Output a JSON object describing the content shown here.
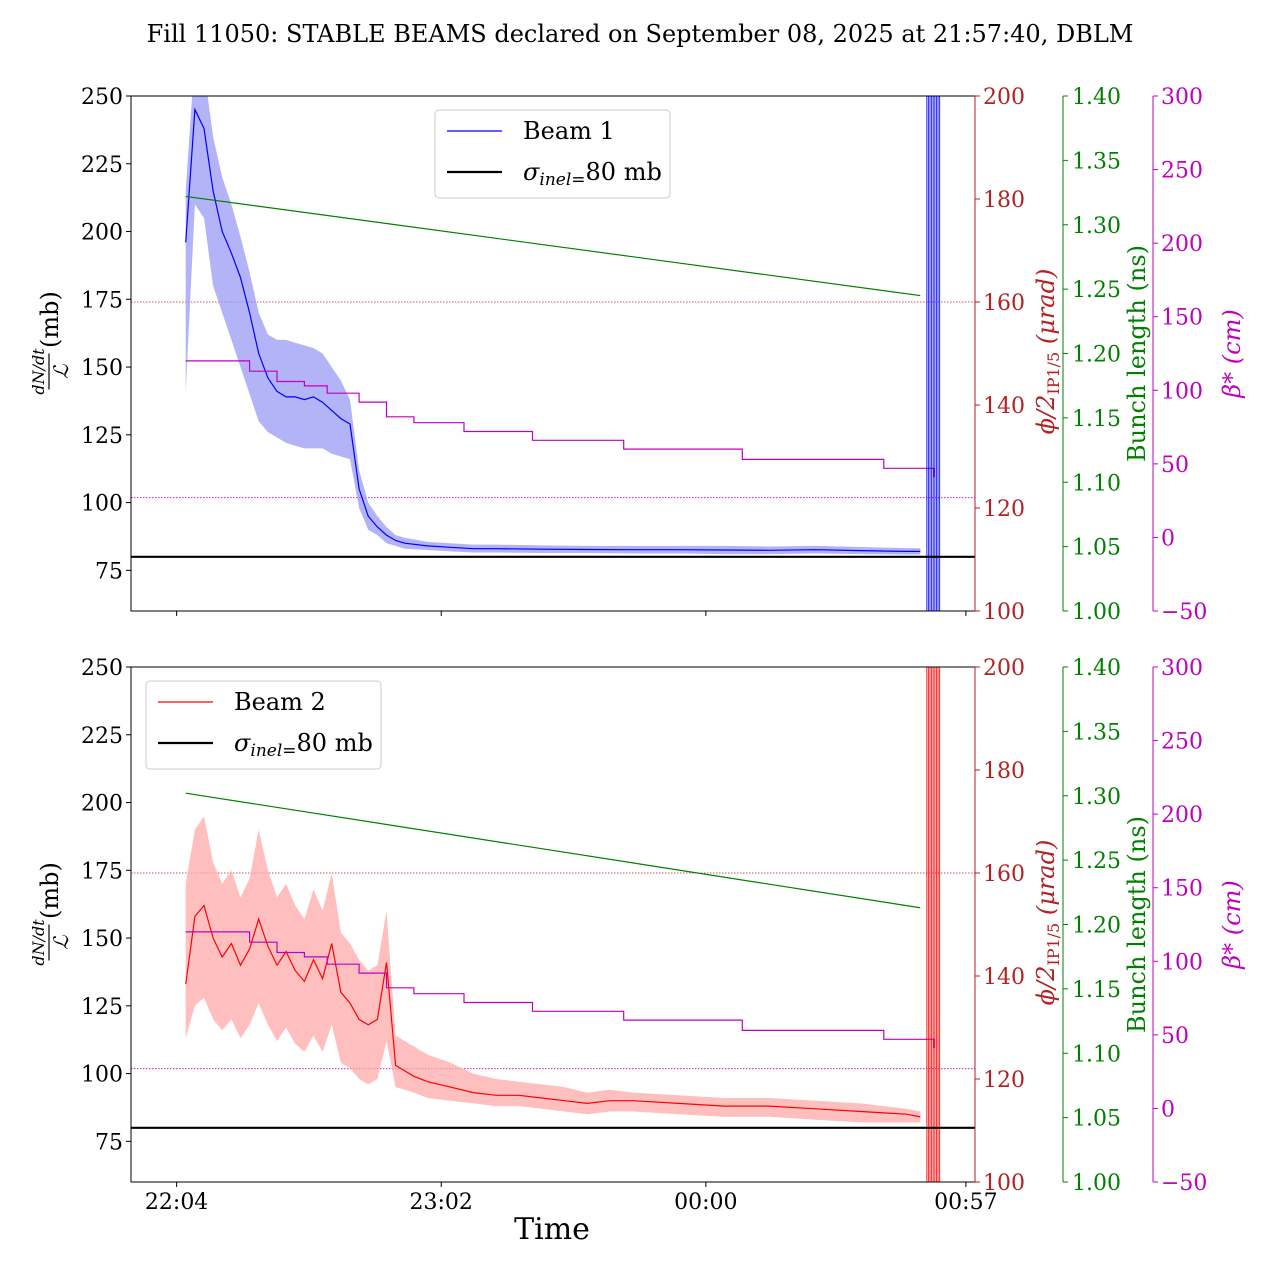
{
  "title": "Fill 11050: STABLE BEAMS declared on September 08, 2025 at 21:57:40, DBLM",
  "xlabel": "Time",
  "x_ticks": [
    "22:04",
    "23:02",
    "00:00",
    "00:57"
  ],
  "colors": {
    "beam1": "#0000ff",
    "beam1_band": "#9a9af5",
    "beam2": "#ff0000",
    "beam2_band": "#ffaaaa",
    "crossing_axis": "#b22222",
    "bunch_axis": "#008000",
    "beta_axis": "#c000c0",
    "sigma": "#000000"
  },
  "axes": {
    "left_ticks": [
      "250",
      "225",
      "200",
      "175",
      "150",
      "125",
      "100",
      "75"
    ],
    "left_values": [
      250,
      225,
      200,
      175,
      150,
      125,
      100,
      75
    ],
    "left_range": [
      60,
      250
    ],
    "crossing_ticks": [
      "200",
      "180",
      "160",
      "140",
      "120",
      "100"
    ],
    "crossing_values": [
      200,
      180,
      160,
      140,
      120,
      100
    ],
    "crossing_range": [
      100,
      200
    ],
    "crossing_label": "ϕ/2",
    "crossing_label_sub": "IP1/5",
    "crossing_label_unit": " (μrad)",
    "bunch_ticks": [
      "1.40",
      "1.35",
      "1.30",
      "1.25",
      "1.20",
      "1.15",
      "1.10",
      "1.05",
      "1.00"
    ],
    "bunch_values": [
      1.4,
      1.35,
      1.3,
      1.25,
      1.2,
      1.15,
      1.1,
      1.05,
      1.0
    ],
    "bunch_range": [
      1.0,
      1.4
    ],
    "bunch_label": "Bunch length (ns)",
    "beta_ticks": [
      "300",
      "250",
      "200",
      "150",
      "100",
      "50",
      "0",
      "−50"
    ],
    "beta_values": [
      300,
      250,
      200,
      150,
      100,
      50,
      0,
      -50
    ],
    "beta_range": [
      -50,
      300
    ],
    "beta_label": "β* (cm)",
    "ylabel_frac_num": "dN/dt",
    "ylabel_frac_den": "ℒ",
    "ylabel_unit": "(mb)"
  },
  "chart_data": [
    {
      "type": "line",
      "panel": "top",
      "legend_entries": [
        "Beam 1",
        "σinel=80 mb"
      ],
      "legend_placement": "top-center",
      "sigma_inel_mb": 80,
      "x_range_min": [
        -10,
        175
      ],
      "series": [
        {
          "name": "Beam 1",
          "x_min": [
            2,
            4,
            6,
            8,
            10,
            12,
            14,
            16,
            18,
            20,
            22,
            24,
            26,
            28,
            30,
            32,
            34,
            36,
            38,
            40,
            42,
            44,
            46,
            48,
            50,
            55,
            60,
            65,
            70,
            80,
            90,
            100,
            110,
            120,
            130,
            140,
            150,
            160,
            163
          ],
          "values": [
            196,
            245,
            238,
            215,
            200,
            192,
            183,
            170,
            155,
            146,
            141,
            139,
            139,
            138,
            139,
            137,
            134,
            131,
            129,
            105,
            95,
            91,
            88,
            86,
            85,
            84,
            83.5,
            83,
            83,
            82.8,
            82.7,
            82.6,
            82.6,
            82.5,
            82.4,
            82.6,
            82.3,
            82.0,
            82.0
          ],
          "band_upper": [
            215,
            265,
            260,
            235,
            220,
            210,
            198,
            185,
            170,
            162,
            160,
            160,
            159,
            158,
            157,
            155,
            150,
            145,
            138,
            112,
            100,
            95,
            91,
            88,
            87,
            85.5,
            85,
            84.5,
            84.5,
            84.2,
            84,
            84,
            84,
            84,
            83.8,
            84,
            83.6,
            83.2,
            83.2
          ],
          "band_lower": [
            141,
            210,
            205,
            180,
            170,
            160,
            150,
            140,
            130,
            126,
            124,
            122,
            121,
            120,
            120,
            120,
            118,
            117,
            116,
            98,
            90,
            88,
            85,
            84,
            83,
            82.5,
            82,
            81.6,
            81.6,
            81.4,
            81.4,
            81.2,
            81.2,
            81.0,
            81.0,
            81.2,
            81.0,
            80.8,
            80.8
          ]
        },
        {
          "name": "Bunch length",
          "axis": "bunch",
          "x_min": [
            2,
            163
          ],
          "values": [
            1.322,
            1.245
          ]
        },
        {
          "name": "beta",
          "axis": "beta",
          "x_min": [
            2,
            9,
            16,
            22,
            28,
            33,
            40,
            46,
            52,
            63,
            78,
            98,
            124,
            155,
            166
          ],
          "values": [
            120,
            120,
            113,
            106,
            103,
            98,
            92,
            82,
            78,
            72,
            66,
            60,
            53,
            47,
            41
          ],
          "line_style": "step"
        },
        {
          "name": "crossing angle reference",
          "axis": "crossing",
          "values": [
            160,
            122
          ]
        }
      ]
    },
    {
      "type": "line",
      "panel": "bottom",
      "legend_entries": [
        "Beam 2",
        "σinel=80 mb"
      ],
      "legend_placement": "top-left",
      "sigma_inel_mb": 80,
      "x_range_min": [
        -10,
        175
      ],
      "series": [
        {
          "name": "Beam 2",
          "x_min": [
            2,
            4,
            6,
            8,
            10,
            12,
            14,
            16,
            18,
            20,
            22,
            24,
            26,
            28,
            30,
            32,
            34,
            36,
            38,
            40,
            42,
            44,
            46,
            48,
            50,
            52,
            55,
            60,
            65,
            70,
            75,
            80,
            85,
            90,
            95,
            100,
            110,
            120,
            130,
            140,
            150,
            160,
            163
          ],
          "values": [
            133,
            158,
            162,
            150,
            143,
            148,
            140,
            146,
            157,
            147,
            140,
            145,
            138,
            134,
            142,
            135,
            148,
            130,
            126,
            120,
            118,
            120,
            141,
            103,
            101,
            99,
            97,
            95,
            93,
            92,
            92,
            91,
            90,
            89,
            90,
            90,
            89,
            88,
            88,
            87,
            86,
            85,
            84
          ],
          "band_upper": [
            170,
            190,
            195,
            178,
            170,
            175,
            165,
            172,
            190,
            175,
            165,
            170,
            162,
            157,
            168,
            160,
            174,
            152,
            148,
            142,
            138,
            140,
            160,
            114,
            112,
            110,
            107,
            104,
            100,
            98,
            97,
            96,
            95,
            93,
            94,
            93,
            92,
            91,
            91,
            90,
            89,
            87,
            86
          ],
          "band_lower": [
            113,
            125,
            128,
            120,
            116,
            120,
            113,
            118,
            126,
            118,
            112,
            117,
            111,
            108,
            114,
            108,
            118,
            104,
            102,
            98,
            96,
            98,
            112,
            95,
            94,
            93,
            91,
            90,
            89,
            88,
            88,
            87,
            86,
            85,
            86,
            86,
            85,
            84,
            84,
            83,
            82,
            82,
            82
          ]
        },
        {
          "name": "Bunch length",
          "axis": "bunch",
          "x_min": [
            2,
            163
          ],
          "values": [
            1.302,
            1.213
          ]
        },
        {
          "name": "beta",
          "axis": "beta",
          "x_min": [
            2,
            9,
            16,
            22,
            28,
            33,
            40,
            46,
            52,
            63,
            78,
            98,
            124,
            155,
            166
          ],
          "values": [
            120,
            120,
            113,
            106,
            103,
            98,
            92,
            82,
            78,
            72,
            66,
            60,
            53,
            47,
            41
          ],
          "line_style": "step"
        },
        {
          "name": "crossing angle reference",
          "axis": "crossing",
          "values": [
            160,
            122
          ]
        }
      ]
    }
  ]
}
